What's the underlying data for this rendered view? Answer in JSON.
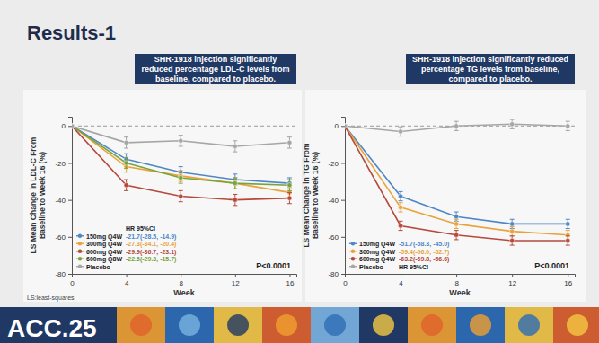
{
  "slide": {
    "title": "Results-1",
    "footnote": "LS:least-squares",
    "banner": "ACC.25"
  },
  "chart_data": [
    {
      "type": "line",
      "title": "SHR-1918 injection significantly reduced percentage LDL-C levels from baseline, compared to placebo.",
      "x_label": "Week",
      "y_label": "LS Mean Change in LDL-C From Baseline to Week 16 (%)",
      "x": [
        0,
        4,
        8,
        12,
        16
      ],
      "xlim": [
        0,
        16.5
      ],
      "xticks": [
        0,
        4,
        8,
        12,
        16
      ],
      "ylim": [
        -80,
        5
      ],
      "yticks": [
        -80,
        -60,
        -40,
        -20,
        0
      ],
      "reference_line": 0,
      "legend": "lower left",
      "legend_header": "HR 95%CI",
      "annotation": "P<0.0001",
      "marker": "circle",
      "series": [
        {
          "name": "150mg Q4W",
          "color": "#4f86c6",
          "values": [
            0,
            -18,
            -25,
            -29,
            -31
          ],
          "errors": [
            0,
            3,
            3,
            3,
            3
          ],
          "ci_label": "-21.7(-28.5, -14.9)"
        },
        {
          "name": "300mg Q4W",
          "color": "#e8a33a",
          "values": [
            0,
            -22,
            -27,
            -31,
            -36
          ],
          "errors": [
            0,
            3,
            3,
            3,
            3
          ],
          "ci_label": "-27.3(-34.1, -20.4)"
        },
        {
          "name": "600mg Q4W",
          "color": "#b5493b",
          "values": [
            0,
            -32,
            -38,
            -40,
            -39
          ],
          "errors": [
            0,
            3,
            3,
            3,
            3
          ],
          "ci_label": "-29.9(-36.7, -23.1)"
        },
        {
          "name": "600mg Q8W",
          "color": "#7aa33a",
          "values": [
            0,
            -20,
            -28,
            -31,
            -32
          ],
          "errors": [
            0,
            3,
            3,
            3,
            3
          ],
          "ci_label": "-22.5(-29.3, -15.7)"
        },
        {
          "name": "Placebo",
          "color": "#a6a6a6",
          "values": [
            0,
            -9,
            -8,
            -11,
            -9
          ],
          "errors": [
            0,
            3,
            3,
            3,
            3
          ]
        }
      ]
    },
    {
      "type": "line",
      "title": "SHR-1918 injection significantly reduced percentage TG levels from baseline, compared to placebo.",
      "x_label": "Week",
      "y_label": "LS Mean Change in TG From Baseline to Week 16 (%)",
      "x": [
        0,
        4,
        8,
        12,
        16
      ],
      "xlim": [
        0,
        16.5
      ],
      "xticks": [
        0,
        4,
        8,
        12,
        16
      ],
      "ylim": [
        -80,
        5
      ],
      "yticks": [
        -80,
        -60,
        -40,
        -20,
        0
      ],
      "reference_line": 0,
      "legend": "lower left",
      "legend_header": "HR 95%CI",
      "annotation": "P<0.0001",
      "marker": "circle",
      "series": [
        {
          "name": "150mg Q4W",
          "color": "#4f86c6",
          "values": [
            0,
            -38,
            -49,
            -53,
            -53
          ],
          "errors": [
            0,
            2.5,
            2.5,
            2.5,
            2.5
          ],
          "ci_label": "-51.7(-58.3, -45.0)"
        },
        {
          "name": "300mg Q4W",
          "color": "#e8a33a",
          "values": [
            0,
            -44,
            -53,
            -57,
            -59
          ],
          "errors": [
            0,
            2.5,
            2.5,
            2.5,
            2.5
          ],
          "ci_label": "-59.4(-66.0, -52.7)"
        },
        {
          "name": "600mg Q4W",
          "color": "#b5493b",
          "values": [
            0,
            -54,
            -59,
            -62,
            -62
          ],
          "errors": [
            0,
            2.5,
            2.5,
            2.5,
            2.5
          ],
          "ci_label": "-63.2(-69.8, -56.6)"
        },
        {
          "name": "Placebo",
          "color": "#a6a6a6",
          "values": [
            0,
            -3,
            0,
            1,
            0
          ],
          "errors": [
            0,
            2.5,
            2.5,
            2.5,
            2.5
          ]
        }
      ]
    }
  ]
}
